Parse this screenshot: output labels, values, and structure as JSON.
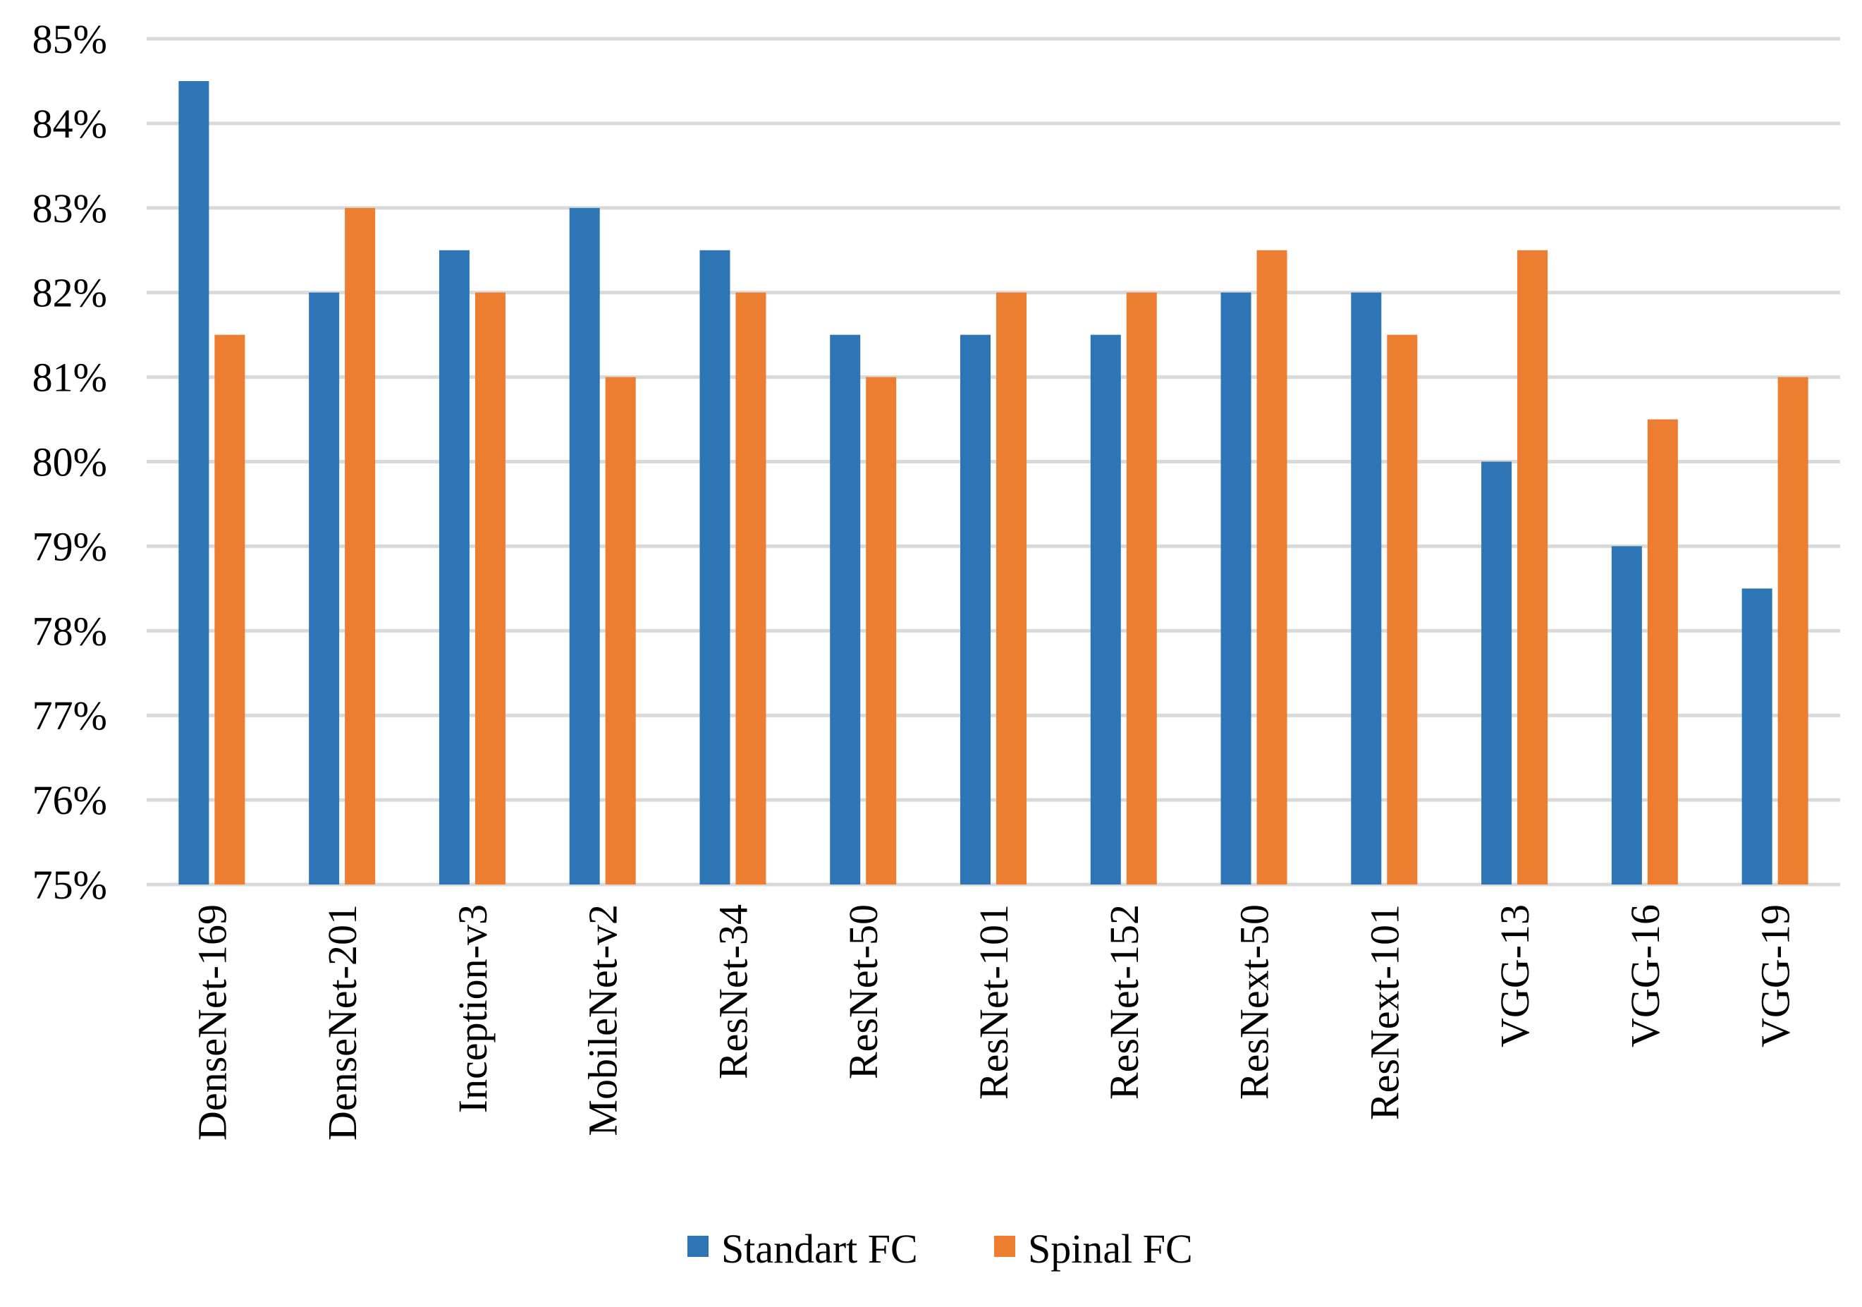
{
  "chart_data": {
    "type": "bar",
    "title": "",
    "xlabel": "",
    "ylabel": "",
    "ylim": [
      75,
      85
    ],
    "y_ticks": [
      75,
      76,
      77,
      78,
      79,
      80,
      81,
      82,
      83,
      84,
      85
    ],
    "y_tick_suffix": "%",
    "grid": true,
    "legend_position": "bottom-center",
    "categories": [
      "DenseNet-169",
      "DenseNet-201",
      "Inception-v3",
      "MobileNet-v2",
      "ResNet-34",
      "ResNet-50",
      "ResNet-101",
      "ResNet-152",
      "ResNext-50",
      "ResNext-101",
      "VGG-13",
      "VGG-16",
      "VGG-19"
    ],
    "series": [
      {
        "name": "Standart FC",
        "color": "#2e75b6",
        "values": [
          84.5,
          82,
          82.5,
          83,
          82.5,
          81.5,
          81.5,
          81.5,
          82,
          82,
          80,
          79,
          78.5
        ]
      },
      {
        "name": "Spinal FC",
        "color": "#ed7d31",
        "values": [
          81.5,
          83,
          82,
          81,
          82,
          81,
          82,
          82,
          82.5,
          81.5,
          82.5,
          80.5,
          81
        ]
      }
    ]
  }
}
